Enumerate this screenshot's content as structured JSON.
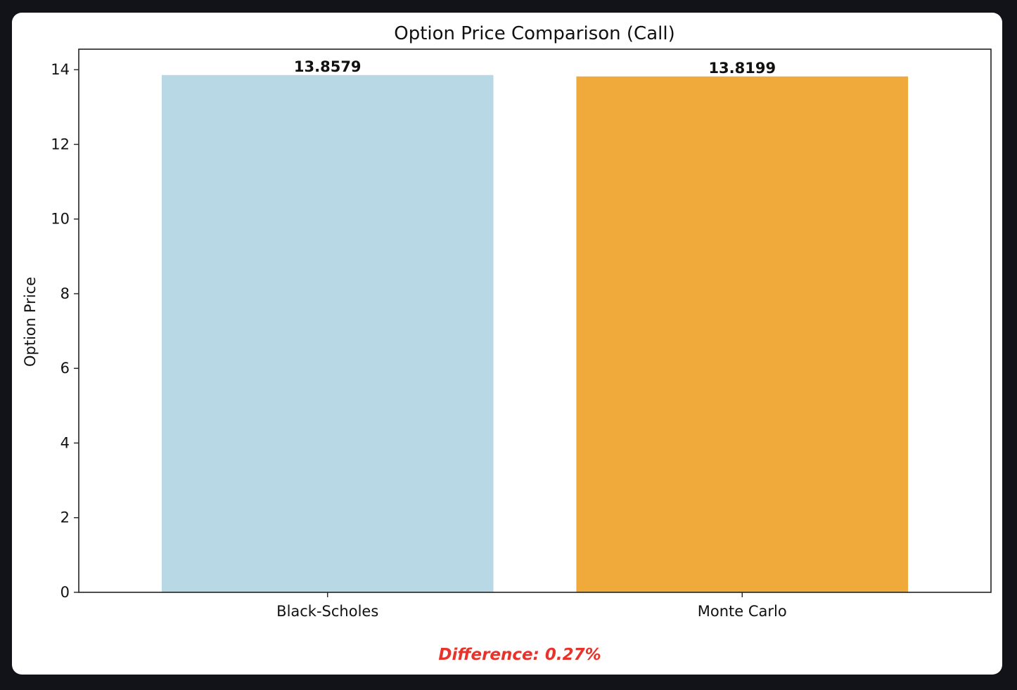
{
  "colors": {
    "background": "#121318",
    "card": "#ffffff",
    "bar_black_scholes": "#b7d8e4",
    "bar_monte_carlo": "#f0a93b",
    "difference_text": "#e8322a"
  },
  "chart_data": {
    "type": "bar",
    "title": "Option Price Comparison (Call)",
    "xlabel": "",
    "ylabel": "Option Price",
    "categories": [
      "Black-Scholes",
      "Monte Carlo"
    ],
    "values": [
      13.8579,
      13.8199
    ],
    "value_labels": [
      "13.8579",
      "13.8199"
    ],
    "ylim": [
      0,
      14.55
    ],
    "yticks": [
      0,
      2,
      4,
      6,
      8,
      10,
      12,
      14
    ],
    "grid": false,
    "legend": "none"
  },
  "annotation": {
    "difference": "Difference: 0.27%"
  }
}
